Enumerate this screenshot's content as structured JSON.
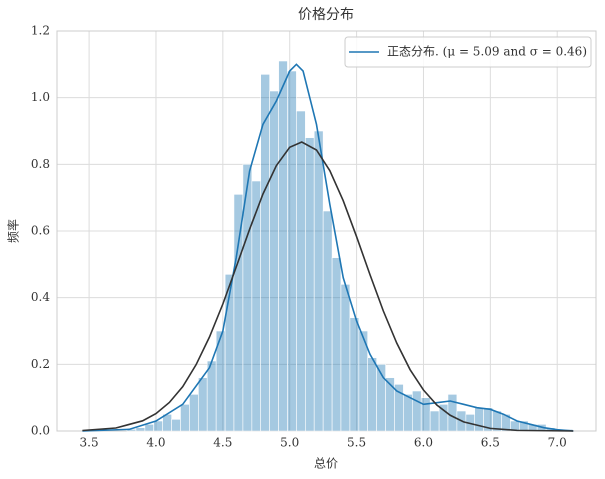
{
  "chart_data": {
    "type": "histogram",
    "title": "价格分布",
    "x_label": "总价",
    "y_label": "频率",
    "bins": [
      3.45,
      3.517,
      3.583,
      3.65,
      3.717,
      3.783,
      3.85,
      3.917,
      3.983,
      4.05,
      4.117,
      4.183,
      4.25,
      4.317,
      4.383,
      4.45,
      4.517,
      4.583,
      4.65,
      4.717,
      4.783,
      4.85,
      4.917,
      4.983,
      5.05,
      5.117,
      5.183,
      5.25,
      5.317,
      5.383,
      5.45,
      5.517,
      5.583,
      5.65,
      5.717,
      5.783,
      5.85,
      5.917,
      5.983,
      6.05,
      6.117,
      6.183,
      6.25,
      6.317,
      6.383,
      6.45,
      6.517,
      6.583,
      6.65,
      6.717,
      6.783,
      6.85,
      6.917,
      6.983,
      7.05,
      7.117
    ],
    "values": [
      0,
      0,
      0,
      0,
      0,
      0.005,
      0.01,
      0.02,
      0.03,
      0.05,
      0.035,
      0.08,
      0.11,
      0.16,
      0.21,
      0.3,
      0.47,
      0.71,
      0.8,
      0.75,
      1.07,
      1.02,
      1.11,
      1.08,
      0.96,
      0.88,
      0.9,
      0.66,
      0.52,
      0.44,
      0.34,
      0.3,
      0.22,
      0.2,
      0.16,
      0.14,
      0.11,
      0.12,
      0.1,
      0.06,
      0.08,
      0.11,
      0.06,
      0.05,
      0.07,
      0.07,
      0.06,
      0.05,
      0.03,
      0.03,
      0.02,
      0.02,
      0.01,
      0.005,
      0.005
    ],
    "color": "#1f77b4",
    "series": [
      {
        "name": "正态分布. (μ = 5.09 and σ = 0.46)",
        "color": "#1f77b4",
        "x": [
          3.45,
          3.8,
          4.0,
          4.2,
          4.4,
          4.5,
          4.6,
          4.7,
          4.8,
          4.9,
          5.0,
          5.05,
          5.1,
          5.2,
          5.3,
          5.4,
          5.5,
          5.6,
          5.7,
          5.8,
          5.9,
          6.0,
          6.1,
          6.2,
          6.3,
          6.4,
          6.5,
          6.6,
          6.7,
          6.8,
          6.9,
          7.0,
          7.12
        ],
        "values": [
          0,
          0.005,
          0.03,
          0.08,
          0.19,
          0.3,
          0.52,
          0.78,
          0.92,
          0.99,
          1.08,
          1.1,
          1.08,
          0.92,
          0.68,
          0.46,
          0.33,
          0.23,
          0.16,
          0.12,
          0.1,
          0.08,
          0.085,
          0.09,
          0.08,
          0.07,
          0.065,
          0.05,
          0.03,
          0.02,
          0.01,
          0.004,
          0
        ]
      },
      {
        "color": "#333333",
        "x": [
          3.45,
          3.7,
          3.9,
          4.0,
          4.1,
          4.2,
          4.3,
          4.4,
          4.5,
          4.6,
          4.7,
          4.8,
          4.9,
          5.0,
          5.09,
          5.2,
          5.3,
          5.4,
          5.5,
          5.6,
          5.7,
          5.8,
          5.9,
          6.0,
          6.1,
          6.2,
          6.3,
          6.5,
          6.7,
          7.12
        ],
        "values": [
          0.0015,
          0.009,
          0.0305,
          0.0523,
          0.0856,
          0.133,
          0.199,
          0.282,
          0.381,
          0.492,
          0.605,
          0.711,
          0.796,
          0.851,
          0.867,
          0.843,
          0.781,
          0.691,
          0.583,
          0.469,
          0.36,
          0.264,
          0.184,
          0.123,
          0.0778,
          0.0472,
          0.0273,
          0.0079,
          0.0019,
          0
        ]
      }
    ],
    "xlim": [
      3.26,
      7.29
    ],
    "ylim": [
      0,
      1.2
    ],
    "xticks": [
      3.5,
      {
        "value": 4,
        "label": "4.0"
      },
      4.5,
      {
        "value": 5,
        "label": "5.0"
      },
      5.5,
      {
        "value": 6,
        "label": "6.0"
      },
      6.5,
      {
        "value": 7,
        "label": "7.0"
      }
    ],
    "yticks": [
      {
        "value": 0,
        "label": "0.0"
      },
      0.2,
      0.4,
      0.6,
      0.8,
      {
        "value": 1,
        "label": "1.0"
      },
      1.2
    ],
    "grid": true,
    "legend": "upper right"
  }
}
